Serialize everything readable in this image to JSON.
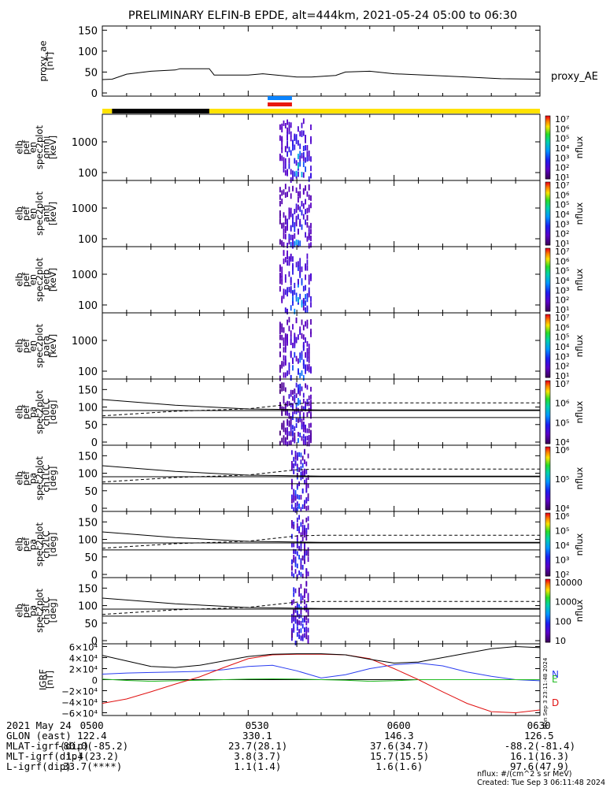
{
  "title": "PRELIMINARY ELFIN-B EPDE, alt=444km, 2021-05-24 05:00 to 06:30",
  "colors": {
    "black": "#000000",
    "yellow": "#ffe200",
    "blue": "#0a84ff",
    "red": "#e8170e",
    "grf_n": "#2a3cf0",
    "grf_e": "#22bb22",
    "grf_d": "#e01010"
  },
  "chart_data": [
    {
      "type": "line",
      "id": "proxy_ae",
      "ylabel_lines": [
        "proxy_ae",
        "[nT]"
      ],
      "ylim": [
        0,
        160
      ],
      "yticks": [
        "0",
        "50",
        "100",
        "150"
      ],
      "legend": "proxy_AE",
      "x": [
        "05:00",
        "05:02",
        "05:05",
        "05:10",
        "05:15",
        "05:16",
        "05:22",
        "05:23",
        "05:30",
        "05:33",
        "05:40",
        "05:43",
        "05:48",
        "05:50",
        "05:55",
        "06:00",
        "06:08",
        "06:15",
        "06:22",
        "06:30"
      ],
      "values": [
        32,
        33,
        45,
        52,
        55,
        58,
        58,
        43,
        43,
        46,
        38,
        38,
        42,
        50,
        52,
        46,
        42,
        38,
        34,
        33
      ]
    },
    {
      "type": "bar",
      "id": "state_bar",
      "segments": [
        {
          "from": "05:00",
          "to": "05:02",
          "color": "yellow"
        },
        {
          "from": "05:02",
          "to": "05:22",
          "color": "black"
        },
        {
          "from": "05:22",
          "to": "06:30",
          "color": "yellow"
        }
      ],
      "markers": [
        {
          "from": "05:34",
          "to": "05:39",
          "color": "blue"
        },
        {
          "from": "05:34",
          "to": "05:39",
          "color": "red"
        }
      ]
    },
    {
      "type": "heatmap",
      "id": "en_omni",
      "ylabel_lines": [
        "elb",
        "pef",
        "en",
        "spec2plot",
        "omni",
        "[keV]"
      ],
      "yscale": "log",
      "yticks": [
        "100",
        "1000"
      ],
      "colorbar": {
        "label": "nflux",
        "ticks": [
          "10¹",
          "10²",
          "10³",
          "10⁴",
          "10⁵",
          "10⁶",
          "10⁷"
        ]
      }
    },
    {
      "type": "heatmap",
      "id": "en_anti",
      "ylabel_lines": [
        "elb",
        "pef",
        "en",
        "spec2plot",
        "anti",
        "[keV]"
      ],
      "yscale": "log",
      "yticks": [
        "100",
        "1000"
      ],
      "colorbar": {
        "label": "nflux",
        "ticks": [
          "10¹",
          "10²",
          "10³",
          "10⁴",
          "10⁵",
          "10⁶",
          "10⁷"
        ]
      }
    },
    {
      "type": "heatmap",
      "id": "en_perp",
      "ylabel_lines": [
        "elb",
        "pef",
        "en",
        "spec2plot",
        "perp",
        "[keV]"
      ],
      "yscale": "log",
      "yticks": [
        "100",
        "1000"
      ],
      "colorbar": {
        "label": "nflux",
        "ticks": [
          "10¹",
          "10²",
          "10³",
          "10⁴",
          "10⁵",
          "10⁶",
          "10⁷"
        ]
      }
    },
    {
      "type": "heatmap",
      "id": "en_para",
      "ylabel_lines": [
        "elb",
        "pef",
        "en",
        "spec2plot",
        "para",
        "[keV]"
      ],
      "yscale": "log",
      "yticks": [
        "100",
        "1000"
      ],
      "colorbar": {
        "label": "nflux",
        "ticks": [
          "10¹",
          "10²",
          "10³",
          "10⁴",
          "10⁵",
          "10⁶",
          "10⁷"
        ]
      }
    },
    {
      "type": "heatmap",
      "id": "pa_ch0",
      "ylabel_lines": [
        "elb",
        "pef",
        "pa",
        "spec2plot",
        "ch0LC",
        "[deg]"
      ],
      "ylim": [
        0,
        180
      ],
      "yticks": [
        "0",
        "50",
        "100",
        "150"
      ],
      "colorbar": {
        "label": "nflux",
        "ticks": [
          "10⁴",
          "10⁵",
          "10⁶",
          "10⁷"
        ]
      }
    },
    {
      "type": "heatmap",
      "id": "pa_ch1",
      "ylabel_lines": [
        "elb",
        "pef",
        "pa",
        "spec2plot",
        "ch1LC",
        "[deg]"
      ],
      "ylim": [
        0,
        180
      ],
      "yticks": [
        "0",
        "50",
        "100",
        "150"
      ],
      "colorbar": {
        "label": "nflux",
        "ticks": [
          "10⁴",
          "10⁵",
          "10⁶"
        ]
      }
    },
    {
      "type": "heatmap",
      "id": "pa_ch2",
      "ylabel_lines": [
        "elb",
        "pef",
        "pa",
        "spec2plot",
        "ch2LC",
        "[deg]"
      ],
      "ylim": [
        0,
        180
      ],
      "yticks": [
        "0",
        "50",
        "100",
        "150"
      ],
      "colorbar": {
        "label": "nflux",
        "ticks": [
          "10²",
          "10³",
          "10⁴",
          "10⁵",
          "10⁶"
        ]
      }
    },
    {
      "type": "heatmap",
      "id": "pa_ch3",
      "ylabel_lines": [
        "elb",
        "pef",
        "pa",
        "spec2plot",
        "ch3LC",
        "[deg]"
      ],
      "ylim": [
        0,
        180
      ],
      "yticks": [
        "0",
        "50",
        "100",
        "150"
      ],
      "colorbar": {
        "label": "nflux",
        "ticks": [
          "10",
          "100",
          "1000",
          "10000"
        ]
      }
    },
    {
      "type": "line",
      "id": "igrf",
      "ylabel_lines": [
        "IGRF",
        "[nT]"
      ],
      "ylim": [
        -65000,
        65000
      ],
      "yticks": [
        "−6×10⁴",
        "−4×10⁴",
        "−2×10⁴",
        "0",
        "2×10⁴",
        "4×10⁴",
        "6×10⁴"
      ],
      "series": [
        {
          "name": "N",
          "x": [
            0,
            5,
            10,
            15,
            20,
            25,
            30,
            35,
            40,
            45,
            50,
            55,
            60,
            65,
            70,
            75,
            80,
            85,
            90
          ],
          "values": [
            10000,
            12000,
            13000,
            14000,
            15000,
            18000,
            24000,
            26000,
            16000,
            3000,
            9000,
            20000,
            27000,
            30000,
            25000,
            14000,
            6000,
            0,
            -2000
          ]
        },
        {
          "name": "E",
          "x": [
            0,
            5,
            10,
            15,
            20,
            25,
            30,
            35,
            40,
            45,
            50,
            55,
            60,
            65,
            70,
            75,
            80,
            85,
            90
          ],
          "values": [
            1000,
            -1500,
            -3000,
            -2000,
            -1000,
            0,
            1000,
            1500,
            1000,
            0,
            -1000,
            -3000,
            -2000,
            0,
            0,
            0,
            0,
            0,
            0
          ]
        },
        {
          "name": "D",
          "x": [
            0,
            5,
            10,
            15,
            20,
            25,
            30,
            35,
            40,
            45,
            50,
            55,
            60,
            65,
            70,
            75,
            80,
            85,
            90
          ],
          "values": [
            -43000,
            -35000,
            -22000,
            -8000,
            5000,
            22000,
            38000,
            45000,
            46000,
            46000,
            45000,
            38000,
            20000,
            0,
            -22000,
            -43000,
            -58000,
            -60000,
            -55000
          ],
          "label": "D"
        },
        {
          "name": "",
          "x": [
            0,
            5,
            10,
            15,
            20,
            25,
            30,
            35,
            40,
            45,
            50,
            55,
            60,
            65,
            70,
            75,
            80,
            85,
            90
          ],
          "values": [
            44000,
            34000,
            24000,
            22000,
            26000,
            34000,
            42000,
            46000,
            47000,
            47000,
            45000,
            37000,
            30000,
            32000,
            40000,
            48000,
            56000,
            60000,
            58000
          ]
        }
      ]
    }
  ],
  "colorbar_stamp": "Mon Sep  3 23:11:48 2024",
  "footer": {
    "rows": [
      {
        "label": "2021 May 24",
        "values": [
          "0500",
          "0530",
          "0600",
          "0630"
        ]
      },
      {
        "label": "GLON (east)",
        "values": [
          "122.4",
          "330.1",
          "146.3",
          "126.5"
        ]
      },
      {
        "label": "MLAT-igrf(dip)",
        "values": [
          "-80.0(-85.2)",
          "23.7(28.1)",
          "37.6(34.7)",
          "-88.2(-81.4)"
        ]
      },
      {
        "label": "MLT-igrf(dip)",
        "values": [
          "1.4(23.2)",
          "3.8(3.7)",
          "15.7(15.5)",
          "16.1(16.3)"
        ]
      },
      {
        "label": "L-igrf(dip)",
        "values": [
          "33.7(****)",
          "1.1(1.4)",
          "1.6(1.6)",
          "97.6(47.9)"
        ]
      }
    ],
    "units": "nflux: #/(cm^2 s sr MeV)",
    "created": "Created: Tue Sep  3 06:11:48 2024"
  }
}
